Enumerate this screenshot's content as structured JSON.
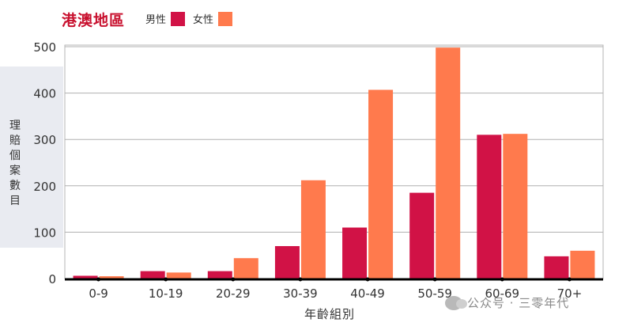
{
  "chart_data": {
    "type": "bar",
    "title": "港澳地區",
    "xlabel": "年齡組別",
    "ylabel": "理賠個案數目",
    "categories": [
      "0-9",
      "10-19",
      "20-29",
      "30-39",
      "40-49",
      "50-59",
      "60-69",
      "70+"
    ],
    "series": [
      {
        "name": "男性",
        "color": "#d11246",
        "values": [
          6,
          16,
          16,
          70,
          110,
          185,
          310,
          48
        ]
      },
      {
        "name": "女性",
        "color": "#ff7a4d",
        "values": [
          5,
          13,
          44,
          212,
          407,
          498,
          312,
          60
        ]
      }
    ],
    "ylim": [
      0,
      500
    ],
    "yticks": [
      0,
      100,
      200,
      300,
      400,
      500
    ],
    "grid": true,
    "legend_position": "top-left"
  },
  "colors": {
    "title": "#c8102e"
  },
  "watermark": {
    "text": "公众号 · 三零年代",
    "icon": "wechat-icon"
  }
}
